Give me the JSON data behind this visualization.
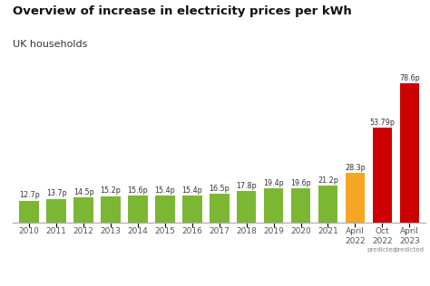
{
  "categories": [
    "2010",
    "2011",
    "2012",
    "2013",
    "2014",
    "2015",
    "2016",
    "2017",
    "2018",
    "2019",
    "2020",
    "2021",
    "April\n2022",
    "Oct\n2022",
    "April\n2023"
  ],
  "tick_extra": [
    "",
    "",
    "",
    "",
    "",
    "",
    "",
    "",
    "",
    "",
    "",
    "",
    "",
    "predicted",
    "predicted"
  ],
  "values": [
    12.7,
    13.7,
    14.5,
    15.2,
    15.6,
    15.4,
    15.4,
    16.5,
    17.8,
    19.4,
    19.6,
    21.2,
    28.3,
    53.79,
    78.6
  ],
  "labels": [
    "12.7p",
    "13.7p",
    "14.5p",
    "15.2p",
    "15.6p",
    "15.4p",
    "15.4p",
    "16.5p",
    "17.8p",
    "19.4p",
    "19.6p",
    "21.2p",
    "28.3p",
    "53.79p",
    "78.6p"
  ],
  "colors": [
    "#7cb733",
    "#7cb733",
    "#7cb733",
    "#7cb733",
    "#7cb733",
    "#7cb733",
    "#7cb733",
    "#7cb733",
    "#7cb733",
    "#7cb733",
    "#7cb733",
    "#7cb733",
    "#f5a623",
    "#cc0000",
    "#cc0000"
  ],
  "title": "Overview of increase in electricity prices per kWh",
  "subtitle": "UK households",
  "title_fontsize": 9.5,
  "subtitle_fontsize": 8.0,
  "label_fontsize": 5.8,
  "tick_fontsize": 6.5,
  "predicted_fontsize": 5.0,
  "background_color": "#ffffff",
  "bar_edge_color": "none",
  "ylim": [
    0,
    90
  ]
}
